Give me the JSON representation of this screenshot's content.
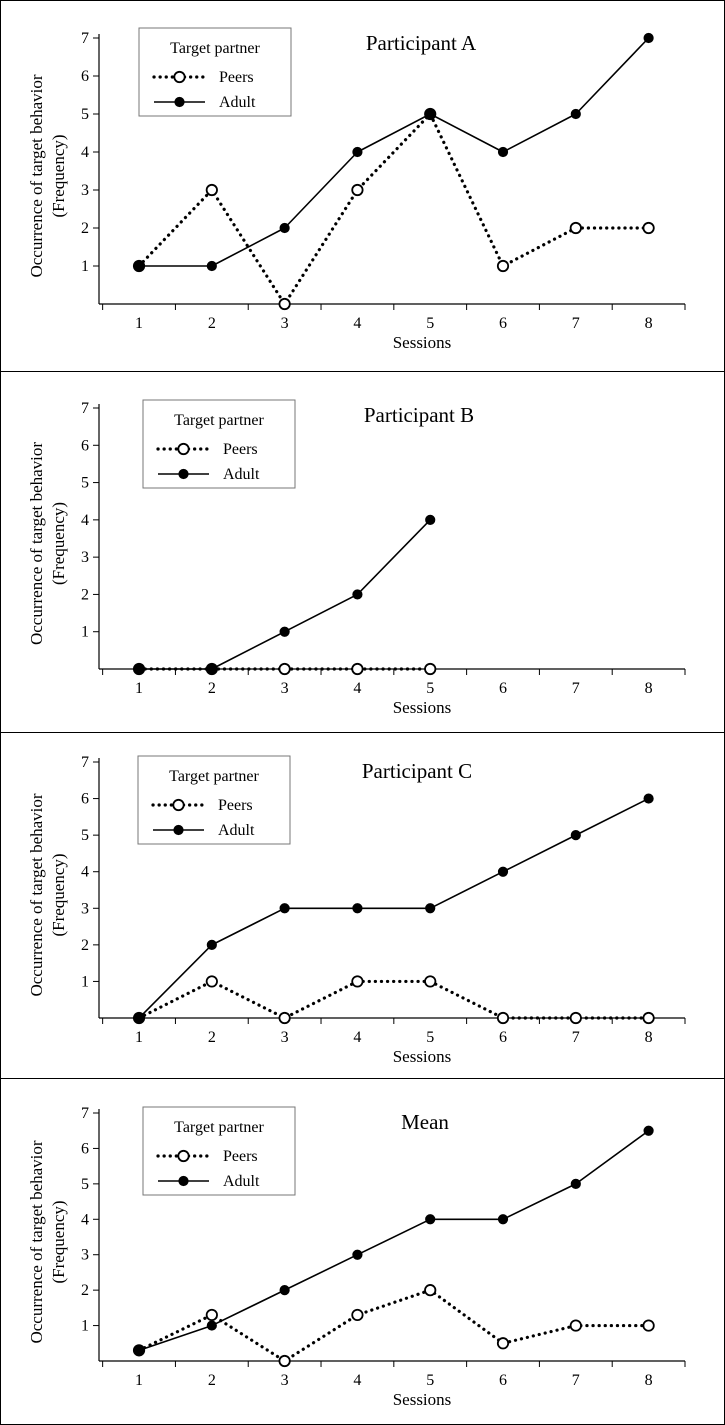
{
  "chart_data": [
    {
      "type": "line",
      "title": "Participant A",
      "xlabel": "Sessions",
      "ylabel_lines": [
        "Occurrence of target behavior",
        "(Frequency)"
      ],
      "x_ticks": [
        1,
        2,
        3,
        4,
        5,
        6,
        7,
        8
      ],
      "y_ticks": [
        1,
        2,
        3,
        4,
        5,
        6,
        7
      ],
      "xlim": [
        0.5,
        8.5
      ],
      "ylim": [
        0,
        7
      ],
      "legend": {
        "title": "Target partner",
        "placement": "top-left"
      },
      "series": [
        {
          "name": "Peers",
          "style": "dotted-open-circle",
          "x": [
            1,
            2,
            3,
            4,
            5,
            6,
            7,
            8
          ],
          "values": [
            1,
            3,
            0,
            3,
            5,
            1,
            2,
            2
          ]
        },
        {
          "name": "Adult",
          "style": "solid-filled-circle",
          "x": [
            1,
            2,
            3,
            4,
            5,
            6,
            7,
            8
          ],
          "values": [
            1,
            1,
            2,
            4,
            5,
            4,
            5,
            7
          ]
        }
      ]
    },
    {
      "type": "line",
      "title": "Participant B",
      "xlabel": "Sessions",
      "ylabel_lines": [
        "Occurrence of target behavior",
        "(Frequency)"
      ],
      "x_ticks": [
        1,
        2,
        3,
        4,
        5,
        6,
        7,
        8
      ],
      "y_ticks": [
        1,
        2,
        3,
        4,
        5,
        6,
        7
      ],
      "xlim": [
        0.5,
        8.5
      ],
      "ylim": [
        0,
        7
      ],
      "legend": {
        "title": "Target partner",
        "placement": "top-left"
      },
      "series": [
        {
          "name": "Peers",
          "style": "dotted-open-circle",
          "x": [
            1,
            2,
            3,
            4,
            5
          ],
          "values": [
            0,
            0,
            0,
            0,
            0
          ]
        },
        {
          "name": "Adult",
          "style": "solid-filled-circle",
          "x": [
            1,
            2,
            3,
            4,
            5
          ],
          "values": [
            0,
            0,
            1,
            2,
            4
          ]
        }
      ]
    },
    {
      "type": "line",
      "title": "Participant C",
      "xlabel": "Sessions",
      "ylabel_lines": [
        "Occurrence of target behavior",
        "(Frequency)"
      ],
      "x_ticks": [
        1,
        2,
        3,
        4,
        5,
        6,
        7,
        8
      ],
      "y_ticks": [
        1,
        2,
        3,
        4,
        5,
        6,
        7
      ],
      "xlim": [
        0.5,
        8.5
      ],
      "ylim": [
        0,
        7
      ],
      "legend": {
        "title": "Target partner",
        "placement": "top-left"
      },
      "series": [
        {
          "name": "Peers",
          "style": "dotted-open-circle",
          "x": [
            1,
            2,
            3,
            4,
            5,
            6,
            7,
            8
          ],
          "values": [
            0,
            1,
            0,
            1,
            1,
            0,
            0,
            0
          ]
        },
        {
          "name": "Adult",
          "style": "solid-filled-circle",
          "x": [
            1,
            2,
            3,
            4,
            5,
            6,
            7,
            8
          ],
          "values": [
            0,
            2,
            3,
            3,
            3,
            4,
            5,
            6
          ]
        }
      ]
    },
    {
      "type": "line",
      "title": "Mean",
      "xlabel": "Sessions",
      "ylabel_lines": [
        "Occurrence of target behavior",
        "(Frequency)"
      ],
      "x_ticks": [
        1,
        2,
        3,
        4,
        5,
        6,
        7,
        8
      ],
      "y_ticks": [
        1,
        2,
        3,
        4,
        5,
        6,
        7
      ],
      "xlim": [
        0.5,
        8.5
      ],
      "ylim": [
        0,
        7
      ],
      "legend": {
        "title": "Target partner",
        "placement": "top-left"
      },
      "series": [
        {
          "name": "Peers",
          "style": "dotted-open-circle",
          "x": [
            1,
            2,
            3,
            4,
            5,
            6,
            7,
            8
          ],
          "values": [
            0.3,
            1.3,
            0,
            1.3,
            2,
            0.5,
            1,
            1
          ]
        },
        {
          "name": "Adult",
          "style": "solid-filled-circle",
          "x": [
            1,
            2,
            3,
            4,
            5,
            6,
            7,
            8
          ],
          "values": [
            0.3,
            1,
            2,
            3,
            4,
            4,
            5,
            6.5
          ]
        }
      ]
    }
  ]
}
